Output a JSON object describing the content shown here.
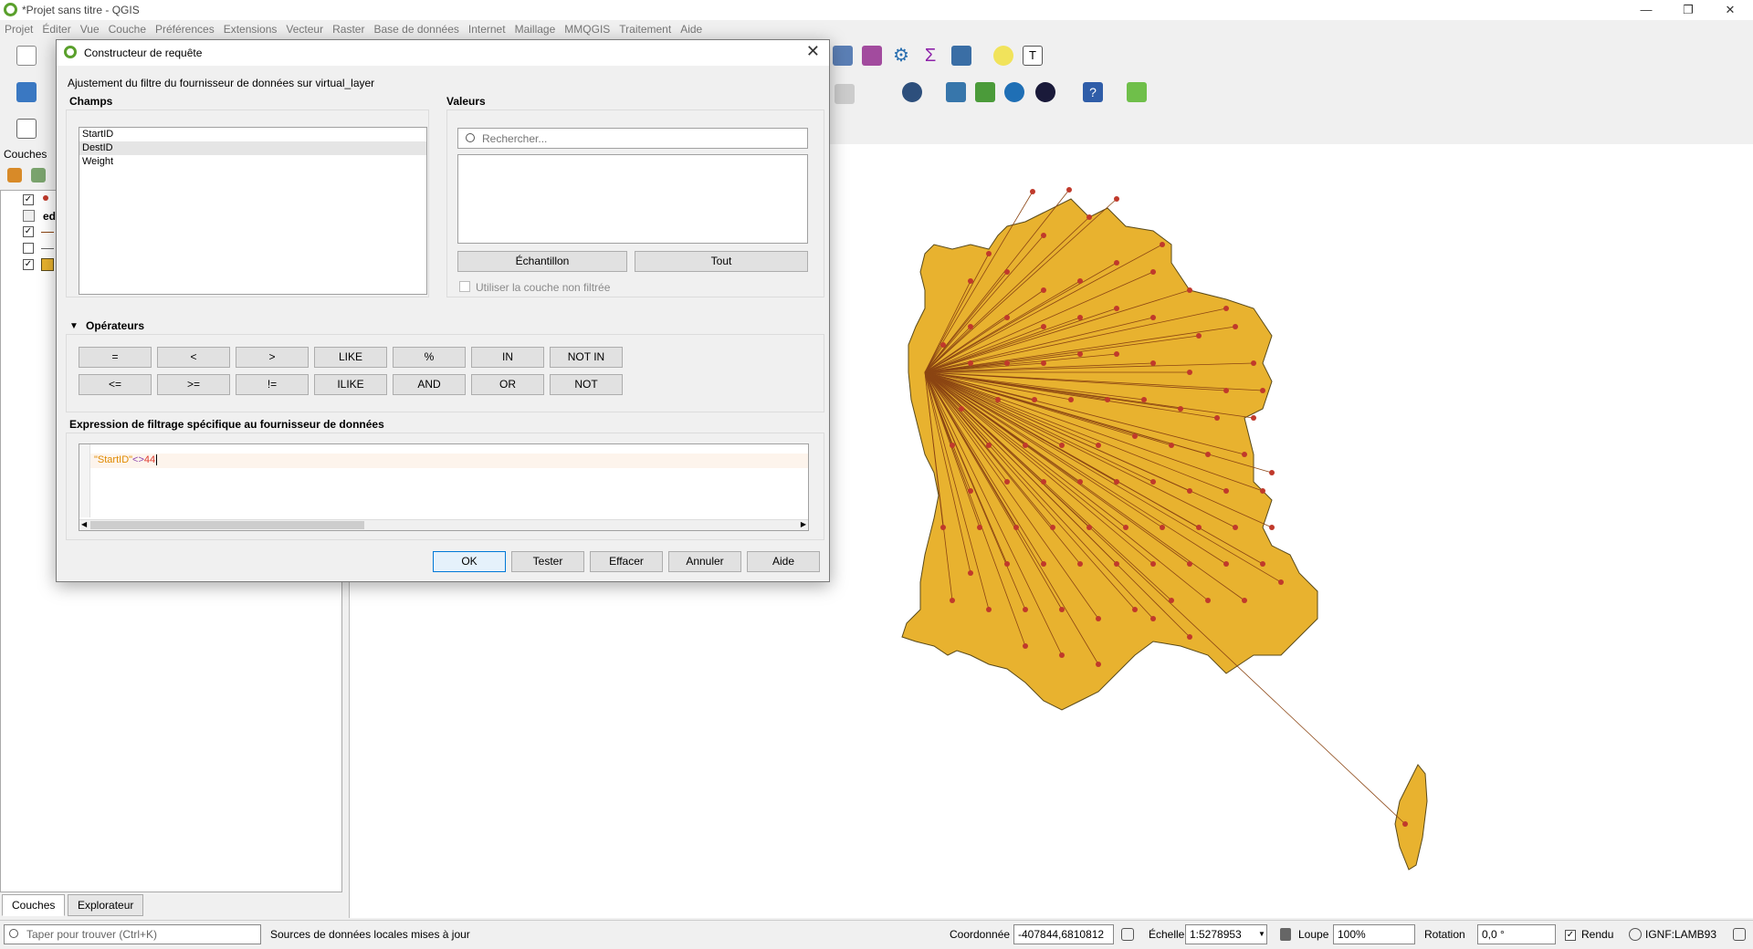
{
  "window": {
    "title": "*Projet sans titre - QGIS"
  },
  "menu": [
    "Projet",
    "Éditer",
    "Vue",
    "Couche",
    "Préférences",
    "Extensions",
    "Vecteur",
    "Raster",
    "Base de données",
    "Internet",
    "Maillage",
    "MMQGIS",
    "Traitement",
    "Aide"
  ],
  "layers_panel": {
    "title": "Couches",
    "items": [
      {
        "checked": true,
        "label": ""
      },
      {
        "checked": false,
        "label": "ed"
      },
      {
        "checked": true,
        "label": ""
      },
      {
        "checked": false,
        "label": ""
      },
      {
        "checked": true,
        "label": ""
      }
    ],
    "tabs": [
      "Couches",
      "Explorateur"
    ]
  },
  "dialog": {
    "title": "Constructeur de requête",
    "subtitle": "Ajustement du filtre du fournisseur de données sur virtual_layer",
    "fields_title": "Champs",
    "fields": [
      "StartID",
      "DestID",
      "Weight"
    ],
    "values_title": "Valeurs",
    "search_placeholder": "Rechercher...",
    "sample_button": "Échantillon",
    "all_button": "Tout",
    "unfiltered_checkbox": "Utiliser la couche non filtrée",
    "operators_title": "Opérateurs",
    "operators_row1": [
      "=",
      "<",
      ">",
      "LIKE",
      "%",
      "IN",
      "NOT IN"
    ],
    "operators_row2": [
      "<=",
      ">=",
      "!=",
      "ILIKE",
      "AND",
      "OR",
      "NOT"
    ],
    "expression_title": "Expression de filtrage spécifique au fournisseur de données",
    "expression": {
      "field": "\"StartID\"",
      "op": "<>",
      "value": "44"
    },
    "buttons": {
      "ok": "OK",
      "test": "Tester",
      "clear": "Effacer",
      "cancel": "Annuler",
      "help": "Aide"
    }
  },
  "statusbar": {
    "search_placeholder": "Taper pour trouver (Ctrl+K)",
    "message": "Sources de données locales mises à jour",
    "coord_label": "Coordonnée",
    "coord_value": "-407844,6810812",
    "scale_label": "Échelle",
    "scale_value": "1:5278953",
    "magnifier_label": "Loupe",
    "magnifier_value": "100%",
    "rotation_label": "Rotation",
    "rotation_value": "0,0 °",
    "render_label": "Rendu",
    "crs": "IGNF:LAMB93"
  },
  "colors": {
    "map_fill": "#e8b22f",
    "map_stroke": "#5a4a1a",
    "points": "#c0392b",
    "flow_lines": "#8b4513"
  }
}
